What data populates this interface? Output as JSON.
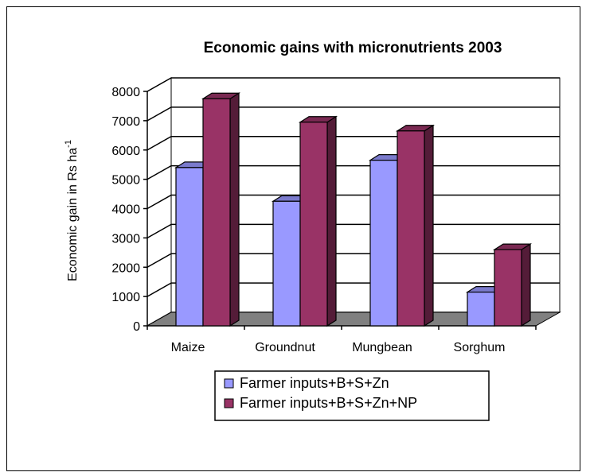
{
  "chart_data": {
    "type": "bar",
    "title": "Economic gains with micronutrients 2003",
    "xlabel": "",
    "ylabel": "Economic gain in Rs ha",
    "ylabel_sup": "-1",
    "categories": [
      "Maize",
      "Groundnut",
      "Mungbean",
      "Sorghum"
    ],
    "series": [
      {
        "name": "Farmer inputs+B+S+Zn",
        "values": [
          5400,
          4250,
          5650,
          1150
        ],
        "color": "#9999ff"
      },
      {
        "name": "Farmer inputs+B+S+Zn+NP",
        "values": [
          7750,
          6950,
          6650,
          2600
        ],
        "color": "#993366"
      }
    ],
    "ylim": [
      0,
      8000
    ],
    "yticks": [
      0,
      1000,
      2000,
      3000,
      4000,
      5000,
      6000,
      7000,
      8000
    ],
    "grid": true,
    "legend_position": "bottom"
  }
}
